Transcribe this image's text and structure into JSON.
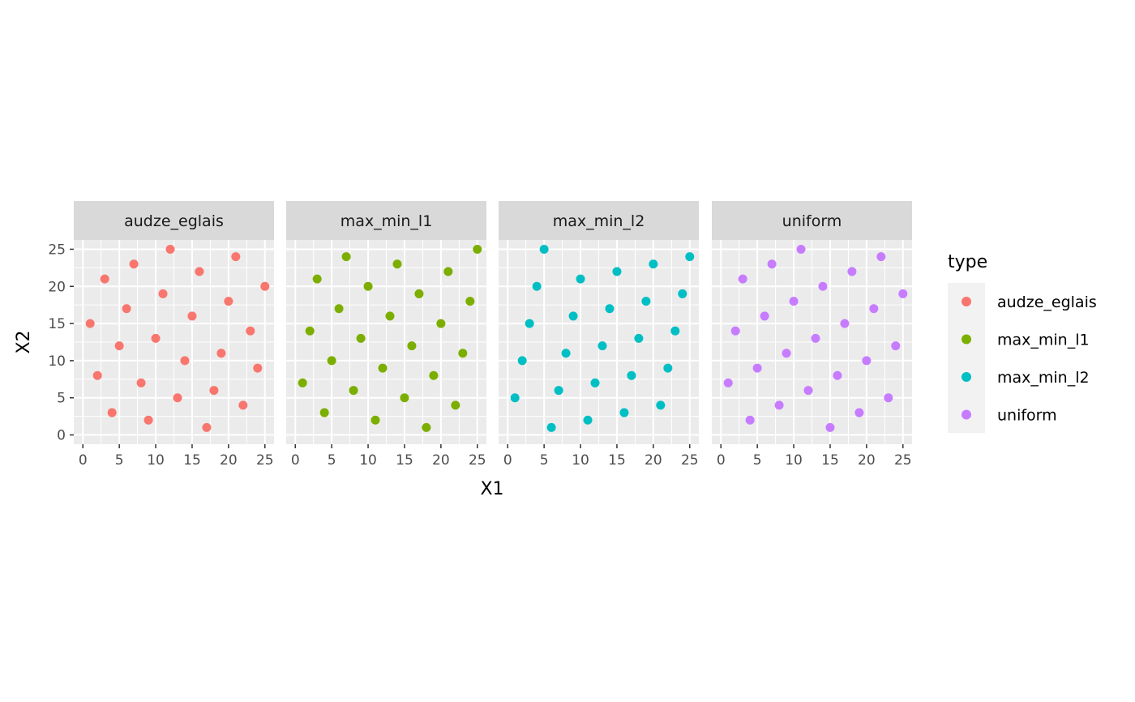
{
  "chart_data": {
    "type": "scatter",
    "xlabel": "X1",
    "ylabel": "X2",
    "xlim": [
      0,
      25
    ],
    "ylim": [
      0,
      25
    ],
    "xticks": [
      0,
      5,
      10,
      15,
      20,
      25
    ],
    "yticks": [
      0,
      5,
      10,
      15,
      20,
      25
    ],
    "grid": true,
    "legend": {
      "title": "type",
      "placement": "right",
      "entries": [
        {
          "label": "audze_eglais",
          "color": "#F8766D"
        },
        {
          "label": "max_min_l1",
          "color": "#7CAE00"
        },
        {
          "label": "max_min_l2",
          "color": "#00BFC4"
        },
        {
          "label": "uniform",
          "color": "#C77CFF"
        }
      ]
    },
    "facets": [
      {
        "name": "audze_eglais",
        "color": "#F8766D",
        "points": [
          [
            1,
            15
          ],
          [
            2,
            8
          ],
          [
            3,
            21
          ],
          [
            4,
            3
          ],
          [
            5,
            12
          ],
          [
            6,
            17
          ],
          [
            7,
            23
          ],
          [
            8,
            7
          ],
          [
            9,
            2
          ],
          [
            10,
            13
          ],
          [
            11,
            19
          ],
          [
            12,
            25
          ],
          [
            13,
            5
          ],
          [
            14,
            10
          ],
          [
            15,
            16
          ],
          [
            16,
            22
          ],
          [
            17,
            1
          ],
          [
            18,
            6
          ],
          [
            19,
            11
          ],
          [
            20,
            18
          ],
          [
            21,
            24
          ],
          [
            22,
            4
          ],
          [
            23,
            14
          ],
          [
            24,
            9
          ],
          [
            25,
            20
          ]
        ]
      },
      {
        "name": "max_min_l1",
        "color": "#7CAE00",
        "points": [
          [
            1,
            7
          ],
          [
            2,
            14
          ],
          [
            3,
            21
          ],
          [
            4,
            3
          ],
          [
            5,
            10
          ],
          [
            6,
            17
          ],
          [
            7,
            24
          ],
          [
            8,
            6
          ],
          [
            9,
            13
          ],
          [
            10,
            20
          ],
          [
            11,
            2
          ],
          [
            12,
            9
          ],
          [
            13,
            16
          ],
          [
            14,
            23
          ],
          [
            15,
            5
          ],
          [
            16,
            12
          ],
          [
            17,
            19
          ],
          [
            18,
            1
          ],
          [
            19,
            8
          ],
          [
            20,
            15
          ],
          [
            21,
            22
          ],
          [
            22,
            4
          ],
          [
            23,
            11
          ],
          [
            24,
            18
          ],
          [
            25,
            25
          ]
        ]
      },
      {
        "name": "max_min_l2",
        "color": "#00BFC4",
        "points": [
          [
            1,
            5
          ],
          [
            2,
            10
          ],
          [
            3,
            15
          ],
          [
            4,
            20
          ],
          [
            5,
            25
          ],
          [
            6,
            1
          ],
          [
            7,
            6
          ],
          [
            8,
            11
          ],
          [
            9,
            16
          ],
          [
            10,
            21
          ],
          [
            11,
            2
          ],
          [
            12,
            7
          ],
          [
            13,
            12
          ],
          [
            14,
            17
          ],
          [
            15,
            22
          ],
          [
            16,
            3
          ],
          [
            17,
            8
          ],
          [
            18,
            13
          ],
          [
            19,
            18
          ],
          [
            20,
            23
          ],
          [
            21,
            4
          ],
          [
            22,
            9
          ],
          [
            23,
            14
          ],
          [
            24,
            19
          ],
          [
            25,
            24
          ]
        ]
      },
      {
        "name": "uniform",
        "color": "#C77CFF",
        "points": [
          [
            1,
            7
          ],
          [
            2,
            14
          ],
          [
            3,
            21
          ],
          [
            4,
            2
          ],
          [
            5,
            9
          ],
          [
            6,
            16
          ],
          [
            7,
            23
          ],
          [
            8,
            4
          ],
          [
            9,
            11
          ],
          [
            10,
            18
          ],
          [
            11,
            25
          ],
          [
            12,
            6
          ],
          [
            13,
            13
          ],
          [
            14,
            20
          ],
          [
            15,
            1
          ],
          [
            16,
            8
          ],
          [
            17,
            15
          ],
          [
            18,
            22
          ],
          [
            19,
            3
          ],
          [
            20,
            10
          ],
          [
            21,
            17
          ],
          [
            22,
            24
          ],
          [
            23,
            5
          ],
          [
            24,
            12
          ],
          [
            25,
            19
          ]
        ]
      }
    ]
  }
}
